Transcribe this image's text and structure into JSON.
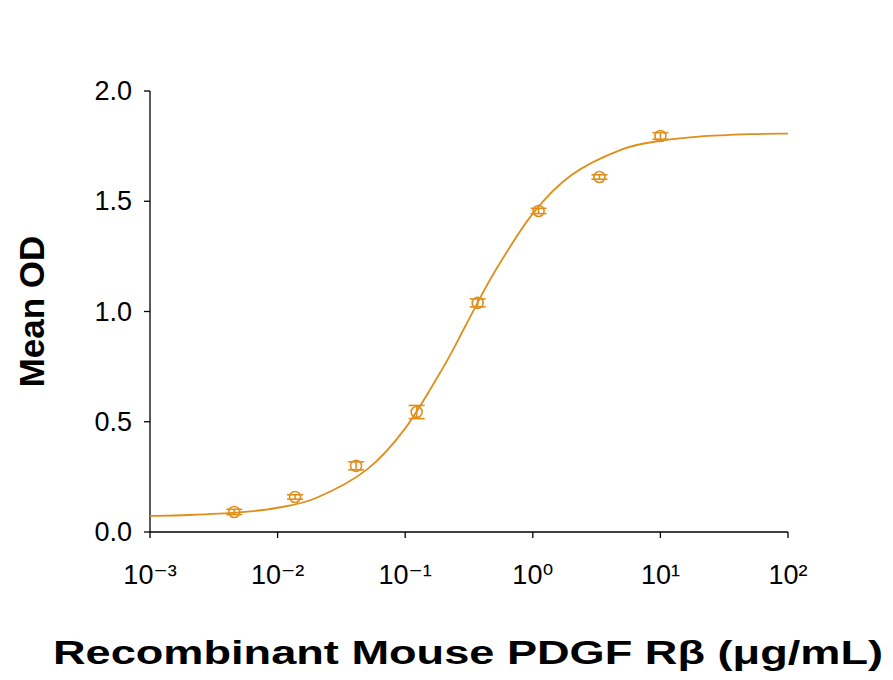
{
  "chart_data": {
    "type": "scatter",
    "x_label": "Recombinant Mouse PDGF Rβ (μg/mL)",
    "y_label": "Mean OD",
    "log": "x",
    "grid": false,
    "xlim": [
      0.001,
      100
    ],
    "ylim": [
      0,
      2
    ],
    "xticks": [
      {
        "value": 0.001,
        "label": "10⁻³"
      },
      {
        "value": 0.01,
        "label": "10⁻²"
      },
      {
        "value": 0.1,
        "label": "10⁻¹"
      },
      {
        "value": 1,
        "label": "10⁰"
      },
      {
        "value": 10,
        "label": "10¹"
      },
      {
        "value": 100,
        "label": "10²"
      }
    ],
    "yticks": [
      {
        "value": 0,
        "label": "0.0"
      },
      0.5,
      {
        "value": 1,
        "label": "1.0"
      },
      1.5,
      {
        "value": 2,
        "label": "2.0"
      }
    ],
    "series": [
      {
        "type": "scatter",
        "color": "#e08e1b",
        "marker": "circle",
        "x": [
          0.00457,
          0.0137,
          0.0412,
          0.123,
          0.37,
          1.11,
          3.33,
          10
        ],
        "values": [
          0.091,
          0.159,
          0.3,
          0.544,
          1.039,
          1.456,
          1.61,
          1.796
        ],
        "errors": [
          0.012,
          0.01,
          0.018,
          0.03,
          0.018,
          0.012,
          0.01,
          0.015
        ]
      },
      {
        "type": "line",
        "color": "#e08e1b",
        "line_style": "solid",
        "x": [
          0.001,
          0.002,
          0.005,
          0.01,
          0.02,
          0.05,
          0.1,
          0.2,
          0.3,
          0.5,
          1,
          2,
          5,
          10,
          20,
          50,
          100
        ],
        "values": [
          0.073,
          0.077,
          0.089,
          0.11,
          0.154,
          0.283,
          0.47,
          0.75,
          0.94,
          1.178,
          1.444,
          1.618,
          1.735,
          1.774,
          1.793,
          1.804,
          1.807
        ]
      }
    ]
  }
}
